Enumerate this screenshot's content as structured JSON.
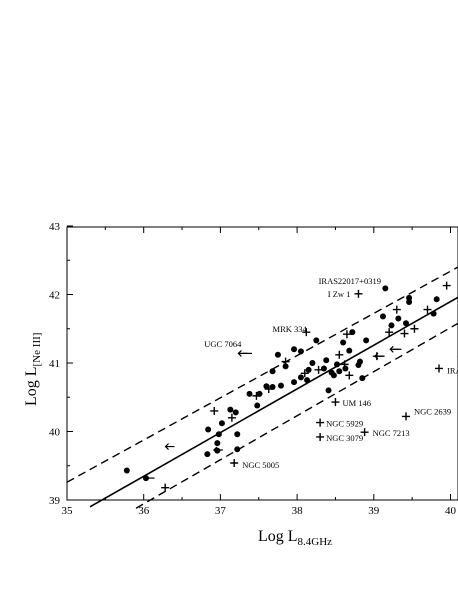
{
  "chart_data": {
    "type": "scatter",
    "xlabel_main": "Log L",
    "xlabel_sub": "8.4GHz",
    "ylabel_main": "Log L",
    "ylabel_sub": "[Ne III]",
    "xlim": [
      35,
      40.13
    ],
    "ylim": [
      39,
      43
    ],
    "xticks": [
      35,
      36,
      37,
      38,
      39,
      40
    ],
    "yticks": [
      39,
      40,
      41,
      42,
      43
    ],
    "fit_line": {
      "x": [
        35.3,
        40.13
      ],
      "y": [
        38.9,
        41.98
      ]
    },
    "upper_band": {
      "x": [
        35,
        40.13
      ],
      "y": [
        39.26,
        42.42
      ]
    },
    "lower_band": {
      "x": [
        35.9,
        40.13
      ],
      "y": [
        38.88,
        41.6
      ]
    },
    "circles": [
      [
        35.78,
        39.43
      ],
      [
        36.03,
        39.32
      ],
      [
        36.83,
        39.67
      ],
      [
        36.96,
        39.72
      ],
      [
        36.96,
        39.83
      ],
      [
        36.98,
        39.96
      ],
      [
        36.84,
        40.03
      ],
      [
        37.02,
        40.12
      ],
      [
        37.22,
        39.74
      ],
      [
        37.22,
        39.96
      ],
      [
        37.13,
        40.32
      ],
      [
        37.2,
        40.28
      ],
      [
        37.38,
        40.55
      ],
      [
        37.48,
        40.38
      ],
      [
        37.51,
        40.55
      ],
      [
        37.6,
        40.66
      ],
      [
        37.68,
        40.65
      ],
      [
        37.68,
        40.88
      ],
      [
        37.75,
        41.12
      ],
      [
        37.79,
        40.67
      ],
      [
        37.85,
        40.95
      ],
      [
        37.96,
        40.72
      ],
      [
        37.96,
        41.2
      ],
      [
        38.05,
        41.17
      ],
      [
        38.05,
        40.79
      ],
      [
        38.13,
        40.75
      ],
      [
        38.15,
        40.9
      ],
      [
        38.2,
        41.0
      ],
      [
        38.25,
        41.33
      ],
      [
        38.35,
        40.92
      ],
      [
        38.38,
        41.04
      ],
      [
        38.41,
        40.6
      ],
      [
        38.45,
        40.86
      ],
      [
        38.48,
        40.82
      ],
      [
        38.52,
        40.98
      ],
      [
        38.55,
        40.88
      ],
      [
        38.6,
        41.3
      ],
      [
        38.63,
        40.92
      ],
      [
        38.68,
        41.18
      ],
      [
        38.72,
        41.45
      ],
      [
        38.8,
        40.97
      ],
      [
        38.82,
        41.02
      ],
      [
        38.85,
        40.78
      ],
      [
        38.9,
        41.33
      ],
      [
        39.15,
        42.09
      ],
      [
        39.12,
        41.68
      ],
      [
        39.23,
        41.55
      ],
      [
        39.32,
        41.65
      ],
      [
        39.42,
        41.58
      ],
      [
        39.46,
        41.89
      ],
      [
        39.46,
        41.95
      ],
      [
        39.78,
        41.72
      ],
      [
        39.82,
        41.93
      ],
      [
        40.13,
        41.1
      ]
    ],
    "pluses": [
      [
        36.28,
        39.18
      ],
      [
        36.92,
        40.3
      ],
      [
        37.15,
        40.2
      ],
      [
        37.47,
        40.52
      ],
      [
        37.63,
        40.62
      ],
      [
        37.85,
        41.02
      ],
      [
        38.1,
        40.85
      ],
      [
        38.12,
        41.45
      ],
      [
        38.28,
        40.9
      ],
      [
        38.55,
        41.12
      ],
      [
        38.62,
        40.98
      ],
      [
        38.65,
        41.42
      ],
      [
        38.68,
        40.82
      ],
      [
        39.04,
        41.1
      ],
      [
        39.2,
        41.45
      ],
      [
        39.3,
        41.78
      ],
      [
        39.4,
        41.43
      ],
      [
        39.53,
        41.5
      ],
      [
        39.7,
        41.78
      ],
      [
        39.95,
        42.13
      ]
    ],
    "left_arrows": [
      [
        36.35,
        39.78
      ],
      [
        37.3,
        41.14
      ],
      [
        36.98,
        39.73
      ],
      [
        39.08,
        41.1
      ],
      [
        39.28,
        41.2
      ]
    ],
    "right_arrows": [
      [
        36.05,
        39.32
      ],
      [
        37.32,
        41.14
      ],
      [
        39.05,
        41.1
      ],
      [
        39.27,
        41.2
      ]
    ],
    "labeled_pluses": [
      {
        "x": 37.18,
        "y": 39.54,
        "label": "NGC 5005",
        "dx": 8,
        "dy": 5,
        "anchor": "start"
      },
      {
        "x": 38.3,
        "y": 39.92,
        "label": "NGC 3079",
        "dx": 6,
        "dy": 4,
        "anchor": "start"
      },
      {
        "x": 38.3,
        "y": 40.13,
        "label": "NGC 5929",
        "dx": 6,
        "dy": 4,
        "anchor": "start"
      },
      {
        "x": 38.88,
        "y": 39.99,
        "label": "NGC 7213",
        "dx": 8,
        "dy": 4,
        "anchor": "start"
      },
      {
        "x": 39.42,
        "y": 40.22,
        "label": "NGC 2639",
        "dx": 8,
        "dy": -2,
        "anchor": "start"
      },
      {
        "x": 38.5,
        "y": 40.43,
        "label": "UM 146",
        "dx": 7,
        "dy": 4,
        "anchor": "start"
      },
      {
        "x": 38.8,
        "y": 42.01,
        "label": "I Zw 1",
        "dx": -8,
        "dy": 3,
        "anchor": "end"
      },
      {
        "x": 39.85,
        "y": 40.92,
        "label": "IRA",
        "dx": 8,
        "dy": 5,
        "anchor": "start"
      }
    ],
    "annotations": [
      {
        "x": 38.28,
        "y": 42.15,
        "text": "IRAS22017+0319"
      },
      {
        "x": 37.68,
        "y": 41.45,
        "text": "MRK 334"
      },
      {
        "x": 36.79,
        "y": 41.23,
        "text": "UGC 7064"
      }
    ]
  }
}
